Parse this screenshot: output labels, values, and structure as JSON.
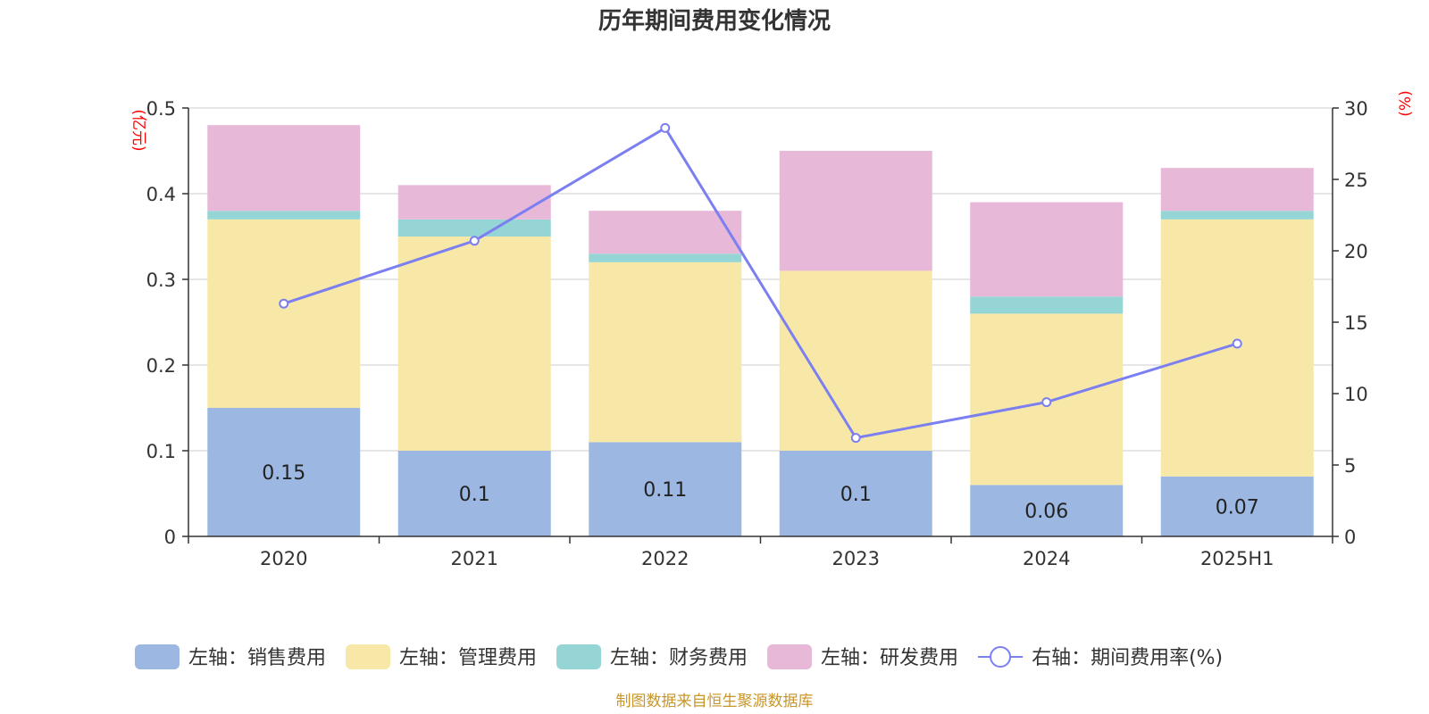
{
  "chart_data": {
    "type": "bar",
    "stacked": true,
    "title": "历年期间费用变化情况",
    "categories": [
      "2020",
      "2021",
      "2022",
      "2023",
      "2024",
      "2025H1"
    ],
    "left_axis": {
      "unit": "(亿元)",
      "ylim": [
        0,
        0.5
      ],
      "ticks": [
        "0",
        "0.1",
        "0.2",
        "0.3",
        "0.4",
        "0.5"
      ],
      "tick_values": [
        0,
        0.1,
        0.2,
        0.3,
        0.4,
        0.5
      ]
    },
    "right_axis": {
      "unit": "(%)",
      "ylim": [
        0,
        30
      ],
      "ticks": [
        "0",
        "5",
        "10",
        "15",
        "20",
        "25",
        "30"
      ],
      "tick_values": [
        0,
        5,
        10,
        15,
        20,
        25,
        30
      ]
    },
    "series": [
      {
        "name": "左轴：销售费用",
        "axis": "left",
        "kind": "bar",
        "color": "#9cb8e2",
        "values": [
          0.15,
          0.1,
          0.11,
          0.1,
          0.06,
          0.07
        ],
        "labels": [
          "0.15",
          "0.1",
          "0.11",
          "0.1",
          "0.06",
          "0.07"
        ]
      },
      {
        "name": "左轴：管理费用",
        "axis": "left",
        "kind": "bar",
        "color": "#f7e8a8",
        "values": [
          0.22,
          0.25,
          0.21,
          0.21,
          0.2,
          0.3
        ]
      },
      {
        "name": "左轴：财务费用",
        "axis": "left",
        "kind": "bar",
        "color": "#95d5d5",
        "values": [
          0.01,
          0.02,
          0.01,
          0.0,
          0.02,
          0.01
        ]
      },
      {
        "name": "左轴：研发费用",
        "axis": "left",
        "kind": "bar",
        "color": "#e8b8d8",
        "values": [
          0.1,
          0.04,
          0.05,
          0.14,
          0.11,
          0.05
        ]
      },
      {
        "name": "右轴：期间费用率(%)",
        "axis": "right",
        "kind": "line",
        "color": "#7b7ff0",
        "values": [
          16.3,
          20.7,
          28.6,
          6.9,
          9.4,
          13.5
        ]
      }
    ],
    "grid": true,
    "legend": "bottom"
  },
  "source_note": "制图数据来自恒生聚源数据库"
}
